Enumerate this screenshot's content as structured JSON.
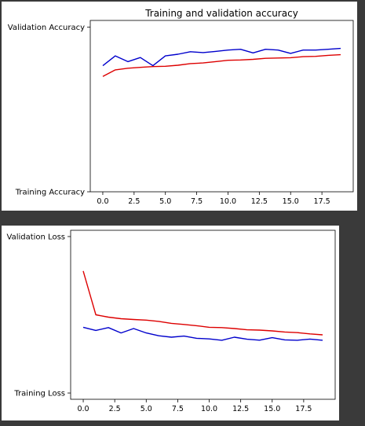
{
  "chart_data": [
    {
      "type": "line",
      "title": "Training and validation accuracy",
      "xlabel": "",
      "ylabel": "",
      "x": [
        0,
        1,
        2,
        3,
        4,
        5,
        6,
        7,
        8,
        9,
        10,
        11,
        12,
        13,
        14,
        15,
        16,
        17,
        18,
        19
      ],
      "xlim": [
        -1,
        20
      ],
      "xticks": [
        0.0,
        2.5,
        5.0,
        7.5,
        10.0,
        12.5,
        15.0,
        17.5
      ],
      "xtick_labels": [
        "0.0",
        "2.5",
        "5.0",
        "7.5",
        "10.0",
        "12.5",
        "15.0",
        "17.5"
      ],
      "ylim": [
        0,
        1.04
      ],
      "yticks": [
        0,
        1
      ],
      "ytick_labels": [
        "Training Accuracy",
        "Validation Accuracy"
      ],
      "grid": false,
      "series": [
        {
          "color": "#0000cc",
          "values": [
            0.765,
            0.825,
            0.79,
            0.815,
            0.765,
            0.825,
            0.835,
            0.85,
            0.845,
            0.852,
            0.86,
            0.865,
            0.843,
            0.865,
            0.86,
            0.84,
            0.86,
            0.86,
            0.865,
            0.87
          ]
        },
        {
          "color": "#dd0000",
          "values": [
            0.7,
            0.74,
            0.75,
            0.755,
            0.76,
            0.762,
            0.768,
            0.778,
            0.782,
            0.79,
            0.798,
            0.8,
            0.804,
            0.81,
            0.812,
            0.814,
            0.82,
            0.822,
            0.828,
            0.832
          ]
        }
      ]
    },
    {
      "type": "line",
      "title": "",
      "xlabel": "",
      "ylabel": "",
      "x": [
        0,
        1,
        2,
        3,
        4,
        5,
        6,
        7,
        8,
        9,
        10,
        11,
        12,
        13,
        14,
        15,
        16,
        17,
        18,
        19
      ],
      "xlim": [
        -1,
        20
      ],
      "xticks": [
        0.0,
        2.5,
        5.0,
        7.5,
        10.0,
        12.5,
        15.0,
        17.5
      ],
      "xtick_labels": [
        "0.0",
        "2.5",
        "5.0",
        "7.5",
        "10.0",
        "12.5",
        "15.0",
        "17.5"
      ],
      "ylim": [
        -0.04,
        1.04
      ],
      "yticks": [
        0,
        1
      ],
      "ytick_labels": [
        "Training Loss",
        "Validation Loss"
      ],
      "grid": false,
      "series": [
        {
          "color": "#dd0000",
          "values": [
            0.78,
            0.5,
            0.485,
            0.475,
            0.47,
            0.466,
            0.458,
            0.445,
            0.438,
            0.43,
            0.42,
            0.418,
            0.412,
            0.404,
            0.402,
            0.397,
            0.39,
            0.386,
            0.378,
            0.372
          ]
        },
        {
          "color": "#0000cc",
          "values": [
            0.42,
            0.4,
            0.418,
            0.384,
            0.412,
            0.384,
            0.366,
            0.357,
            0.364,
            0.35,
            0.346,
            0.337,
            0.357,
            0.344,
            0.338,
            0.354,
            0.34,
            0.337,
            0.345,
            0.337
          ]
        }
      ]
    }
  ]
}
